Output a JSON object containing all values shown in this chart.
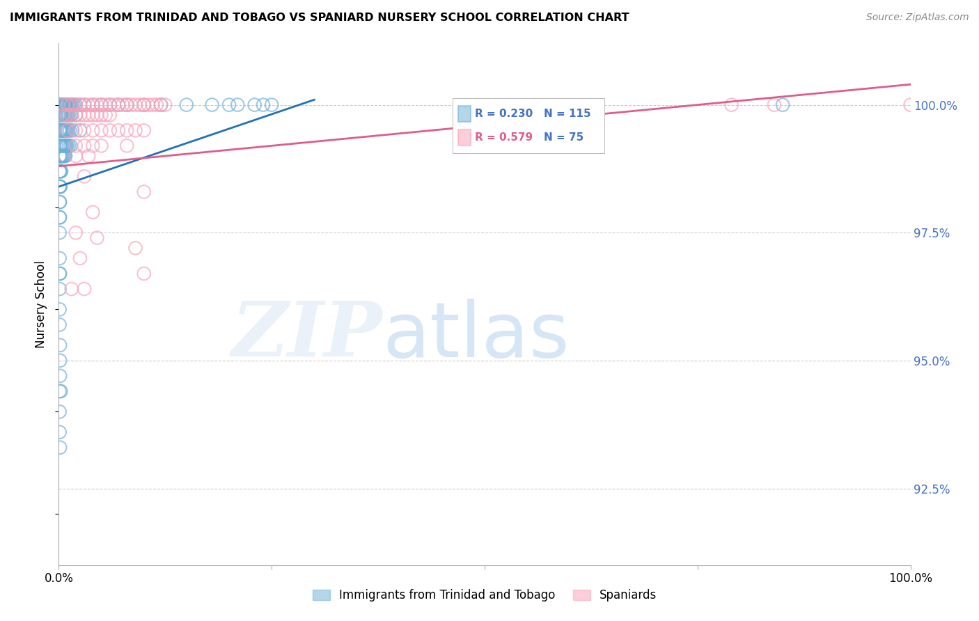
{
  "title": "IMMIGRANTS FROM TRINIDAD AND TOBAGO VS SPANIARD NURSERY SCHOOL CORRELATION CHART",
  "source": "Source: ZipAtlas.com",
  "ylabel": "Nursery School",
  "legend_label_blue": "Immigrants from Trinidad and Tobago",
  "legend_label_pink": "Spaniards",
  "xlim": [
    0.0,
    100.0
  ],
  "ylim": [
    91.0,
    101.2
  ],
  "yticks": [
    92.5,
    95.0,
    97.5,
    100.0
  ],
  "blue_R": 0.23,
  "blue_N": 115,
  "pink_R": 0.579,
  "pink_N": 75,
  "blue_color": "#6baed6",
  "pink_color": "#fa9fb5",
  "blue_line_color": "#2171b5",
  "pink_line_color": "#e05c8a",
  "blue_trend_x": [
    0.0,
    30.0
  ],
  "blue_trend_y": [
    98.4,
    100.1
  ],
  "pink_trend_x": [
    0.0,
    100.0
  ],
  "pink_trend_y": [
    98.8,
    100.4
  ],
  "blue_points": [
    [
      0.05,
      100.0
    ],
    [
      0.1,
      100.0
    ],
    [
      0.15,
      100.0
    ],
    [
      0.2,
      100.0
    ],
    [
      0.25,
      100.0
    ],
    [
      0.3,
      100.0
    ],
    [
      0.35,
      100.0
    ],
    [
      0.4,
      100.0
    ],
    [
      0.45,
      100.0
    ],
    [
      0.5,
      100.0
    ],
    [
      0.55,
      100.0
    ],
    [
      0.6,
      100.0
    ],
    [
      0.65,
      100.0
    ],
    [
      0.7,
      100.0
    ],
    [
      0.75,
      100.0
    ],
    [
      0.8,
      100.0
    ],
    [
      0.85,
      100.0
    ],
    [
      0.9,
      100.0
    ],
    [
      0.95,
      100.0
    ],
    [
      1.0,
      100.0
    ],
    [
      1.1,
      100.0
    ],
    [
      1.2,
      100.0
    ],
    [
      1.3,
      100.0
    ],
    [
      1.4,
      100.0
    ],
    [
      1.5,
      100.0
    ],
    [
      1.6,
      100.0
    ],
    [
      1.8,
      100.0
    ],
    [
      2.0,
      100.0
    ],
    [
      2.5,
      100.0
    ],
    [
      3.0,
      100.0
    ],
    [
      4.0,
      100.0
    ],
    [
      5.0,
      100.0
    ],
    [
      6.0,
      100.0
    ],
    [
      7.0,
      100.0
    ],
    [
      8.0,
      100.0
    ],
    [
      10.0,
      100.0
    ],
    [
      12.0,
      100.0
    ],
    [
      15.0,
      100.0
    ],
    [
      18.0,
      100.0
    ],
    [
      20.0,
      100.0
    ],
    [
      21.0,
      100.0
    ],
    [
      23.0,
      100.0
    ],
    [
      24.0,
      100.0
    ],
    [
      25.0,
      100.0
    ],
    [
      85.0,
      100.0
    ],
    [
      0.05,
      99.8
    ],
    [
      0.1,
      99.8
    ],
    [
      0.15,
      99.8
    ],
    [
      0.2,
      99.8
    ],
    [
      0.25,
      99.8
    ],
    [
      0.3,
      99.8
    ],
    [
      0.4,
      99.8
    ],
    [
      0.5,
      99.8
    ],
    [
      0.6,
      99.8
    ],
    [
      0.7,
      99.8
    ],
    [
      0.8,
      99.8
    ],
    [
      0.9,
      99.8
    ],
    [
      1.0,
      99.8
    ],
    [
      1.1,
      99.8
    ],
    [
      1.2,
      99.8
    ],
    [
      1.4,
      99.8
    ],
    [
      1.5,
      99.8
    ],
    [
      2.0,
      99.8
    ],
    [
      0.1,
      99.5
    ],
    [
      0.15,
      99.5
    ],
    [
      0.2,
      99.5
    ],
    [
      0.3,
      99.5
    ],
    [
      0.4,
      99.5
    ],
    [
      0.5,
      99.5
    ],
    [
      0.6,
      99.5
    ],
    [
      0.7,
      99.5
    ],
    [
      0.8,
      99.5
    ],
    [
      0.9,
      99.5
    ],
    [
      1.0,
      99.5
    ],
    [
      1.1,
      99.5
    ],
    [
      1.3,
      99.5
    ],
    [
      1.6,
      99.5
    ],
    [
      2.5,
      99.5
    ],
    [
      0.1,
      99.2
    ],
    [
      0.15,
      99.2
    ],
    [
      0.2,
      99.2
    ],
    [
      0.3,
      99.2
    ],
    [
      0.4,
      99.2
    ],
    [
      0.5,
      99.2
    ],
    [
      0.6,
      99.2
    ],
    [
      0.7,
      99.2
    ],
    [
      0.8,
      99.2
    ],
    [
      0.9,
      99.2
    ],
    [
      1.0,
      99.2
    ],
    [
      1.2,
      99.2
    ],
    [
      1.4,
      99.2
    ],
    [
      0.1,
      99.0
    ],
    [
      0.15,
      99.0
    ],
    [
      0.2,
      99.0
    ],
    [
      0.3,
      99.0
    ],
    [
      0.4,
      99.0
    ],
    [
      0.5,
      99.0
    ],
    [
      0.6,
      99.0
    ],
    [
      0.7,
      99.0
    ],
    [
      0.8,
      99.0
    ],
    [
      0.1,
      98.7
    ],
    [
      0.15,
      98.7
    ],
    [
      0.2,
      98.7
    ],
    [
      0.3,
      98.7
    ],
    [
      0.1,
      98.4
    ],
    [
      0.15,
      98.4
    ],
    [
      0.2,
      98.4
    ],
    [
      0.1,
      98.1
    ],
    [
      0.15,
      98.1
    ],
    [
      0.1,
      97.8
    ],
    [
      0.15,
      97.8
    ],
    [
      0.1,
      97.5
    ],
    [
      0.1,
      97.0
    ],
    [
      0.1,
      96.7
    ],
    [
      0.15,
      96.7
    ],
    [
      0.1,
      96.4
    ],
    [
      0.1,
      96.0
    ],
    [
      0.1,
      95.7
    ],
    [
      0.15,
      95.3
    ],
    [
      0.15,
      95.0
    ],
    [
      0.15,
      94.7
    ],
    [
      0.1,
      94.4
    ],
    [
      0.25,
      94.4
    ],
    [
      0.1,
      94.0
    ],
    [
      0.1,
      93.6
    ],
    [
      0.15,
      93.3
    ]
  ],
  "pink_points": [
    [
      0.5,
      100.0
    ],
    [
      1.0,
      100.0
    ],
    [
      1.5,
      100.0
    ],
    [
      2.0,
      100.0
    ],
    [
      2.5,
      100.0
    ],
    [
      3.0,
      100.0
    ],
    [
      3.5,
      100.0
    ],
    [
      4.0,
      100.0
    ],
    [
      4.5,
      100.0
    ],
    [
      5.0,
      100.0
    ],
    [
      5.5,
      100.0
    ],
    [
      6.0,
      100.0
    ],
    [
      6.5,
      100.0
    ],
    [
      7.0,
      100.0
    ],
    [
      7.5,
      100.0
    ],
    [
      8.0,
      100.0
    ],
    [
      8.5,
      100.0
    ],
    [
      9.0,
      100.0
    ],
    [
      9.5,
      100.0
    ],
    [
      10.0,
      100.0
    ],
    [
      10.5,
      100.0
    ],
    [
      11.0,
      100.0
    ],
    [
      11.5,
      100.0
    ],
    [
      12.0,
      100.0
    ],
    [
      12.5,
      100.0
    ],
    [
      79.0,
      100.0
    ],
    [
      84.0,
      100.0
    ],
    [
      100.0,
      100.0
    ],
    [
      0.5,
      99.8
    ],
    [
      1.0,
      99.8
    ],
    [
      1.5,
      99.8
    ],
    [
      2.0,
      99.8
    ],
    [
      2.5,
      99.8
    ],
    [
      3.0,
      99.8
    ],
    [
      3.5,
      99.8
    ],
    [
      4.0,
      99.8
    ],
    [
      4.5,
      99.8
    ],
    [
      5.0,
      99.8
    ],
    [
      5.5,
      99.8
    ],
    [
      6.0,
      99.8
    ],
    [
      1.0,
      99.5
    ],
    [
      2.0,
      99.5
    ],
    [
      3.0,
      99.5
    ],
    [
      4.0,
      99.5
    ],
    [
      5.0,
      99.5
    ],
    [
      6.0,
      99.5
    ],
    [
      7.0,
      99.5
    ],
    [
      8.0,
      99.5
    ],
    [
      9.0,
      99.5
    ],
    [
      10.0,
      99.5
    ],
    [
      2.0,
      99.2
    ],
    [
      3.0,
      99.2
    ],
    [
      4.0,
      99.2
    ],
    [
      5.0,
      99.2
    ],
    [
      8.0,
      99.2
    ],
    [
      2.0,
      99.0
    ],
    [
      3.5,
      99.0
    ],
    [
      3.0,
      98.6
    ],
    [
      10.0,
      98.3
    ],
    [
      4.0,
      97.9
    ],
    [
      2.0,
      97.5
    ],
    [
      4.5,
      97.4
    ],
    [
      9.0,
      97.2
    ],
    [
      2.5,
      97.0
    ],
    [
      10.0,
      96.7
    ],
    [
      1.5,
      96.4
    ],
    [
      3.0,
      96.4
    ]
  ]
}
